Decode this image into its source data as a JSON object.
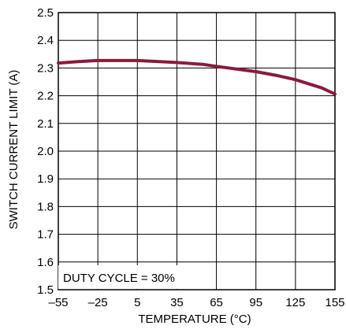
{
  "chart_data": {
    "type": "line",
    "title": "",
    "xlabel": "TEMPERATURE (°C)",
    "ylabel": "SWITCH CURRENT LIMIT  (A)",
    "xlim": [
      -55,
      155
    ],
    "ylim": [
      1.5,
      2.5
    ],
    "x_ticks": [
      -55,
      -25,
      5,
      35,
      65,
      95,
      125,
      155
    ],
    "x_tick_labels": [
      "–55",
      "–25",
      "5",
      "35",
      "65",
      "95",
      "125",
      "155"
    ],
    "y_ticks": [
      1.5,
      1.6,
      1.7,
      1.8,
      1.9,
      2.0,
      2.1,
      2.2,
      2.3,
      2.4,
      2.5
    ],
    "y_tick_labels": [
      "1.5",
      "1.6",
      "1.7",
      "1.8",
      "1.9",
      "2.0",
      "2.1",
      "2.2",
      "2.3",
      "2.4",
      "2.5"
    ],
    "grid": true,
    "annotation": "DUTY CYCLE = 30%",
    "series_color": "#8b1a3a",
    "series": [
      {
        "x": [
          -55,
          -40,
          -25,
          5,
          35,
          55,
          65,
          95,
          110,
          125,
          145,
          155
        ],
        "values": [
          2.318,
          2.323,
          2.327,
          2.327,
          2.32,
          2.313,
          2.306,
          2.287,
          2.274,
          2.258,
          2.228,
          2.206
        ]
      }
    ]
  }
}
